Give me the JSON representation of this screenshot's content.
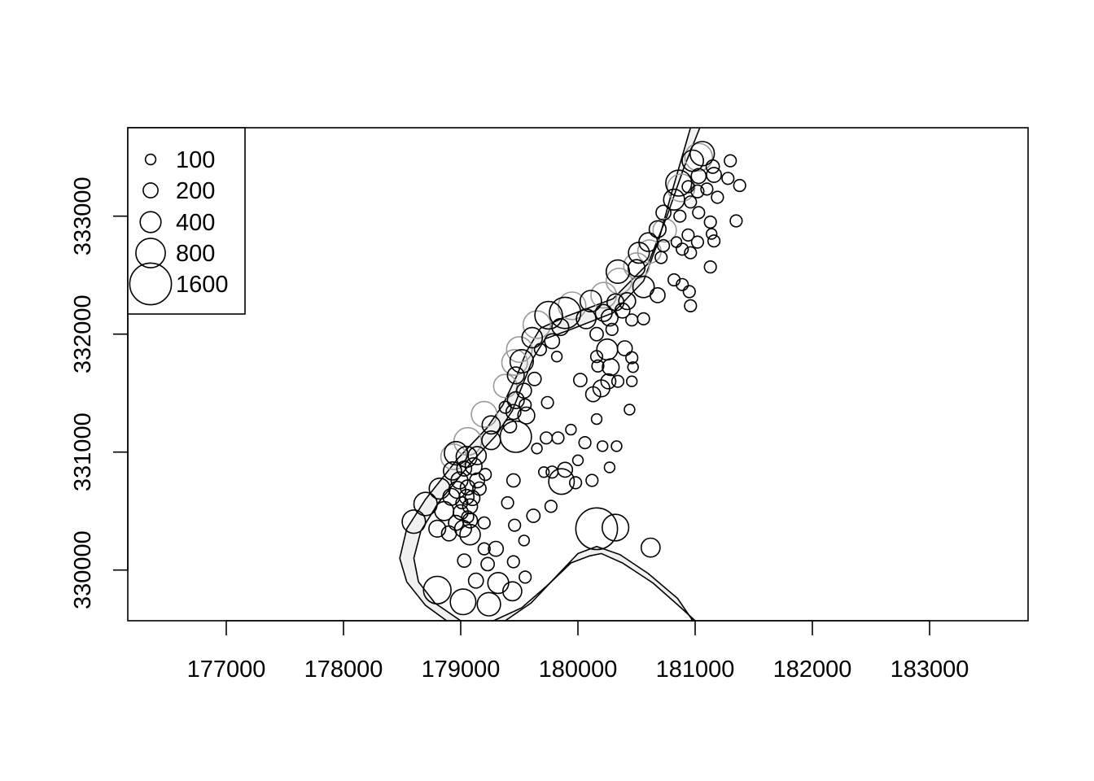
{
  "chart_data": {
    "type": "scatter",
    "title": "",
    "xlabel": "",
    "ylabel": "",
    "xlim": [
      176160,
      183840
    ],
    "ylim": [
      329570,
      333750
    ],
    "x_ticks": [
      177000,
      178000,
      179000,
      180000,
      181000,
      182000,
      183000
    ],
    "y_ticks": [
      330000,
      331000,
      332000,
      333000
    ],
    "x_tick_labels": [
      "177000",
      "178000",
      "179000",
      "180000",
      "181000",
      "182000",
      "183000"
    ],
    "y_tick_labels": [
      "330000",
      "331000",
      "332000",
      "333000"
    ],
    "grid": false,
    "legend": {
      "placement": "top-left",
      "entries": [
        {
          "label": "100",
          "value": 100
        },
        {
          "label": "200",
          "value": 200
        },
        {
          "label": "400",
          "value": 400
        },
        {
          "label": "800",
          "value": 800
        },
        {
          "label": "1600",
          "value": 1600
        }
      ]
    },
    "colors": {
      "river_fill": "#f0f0f0",
      "river_edge": "#000000",
      "point_edge": "#000000",
      "upper_bank_points": "#9a9a9a"
    },
    "river_edges": {
      "outer": [
        [
          178880,
          329570
        ],
        [
          178700,
          329700
        ],
        [
          178540,
          329900
        ],
        [
          178480,
          330100
        ],
        [
          178540,
          330350
        ],
        [
          178700,
          330600
        ],
        [
          178980,
          330950
        ],
        [
          179220,
          331200
        ],
        [
          179360,
          331400
        ],
        [
          179480,
          331650
        ],
        [
          179560,
          331850
        ],
        [
          179680,
          332050
        ],
        [
          179900,
          332150
        ],
        [
          180300,
          332300
        ],
        [
          180600,
          332600
        ],
        [
          180760,
          333000
        ],
        [
          180900,
          333400
        ],
        [
          181040,
          333750
        ]
      ],
      "inner": [
        [
          179380,
          329570
        ],
        [
          179600,
          329720
        ],
        [
          179800,
          329930
        ],
        [
          180000,
          330140
        ],
        [
          180160,
          330200
        ],
        [
          180360,
          330130
        ],
        [
          180600,
          329970
        ],
        [
          180850,
          329760
        ],
        [
          180980,
          329570
        ]
      ],
      "outer_river_left": [
        [
          179000,
          329570
        ],
        [
          178780,
          329720
        ],
        [
          178640,
          329900
        ],
        [
          178600,
          330100
        ],
        [
          178660,
          330330
        ],
        [
          178810,
          330570
        ],
        [
          179080,
          330900
        ],
        [
          179300,
          331140
        ],
        [
          179440,
          331350
        ],
        [
          179540,
          331600
        ],
        [
          179620,
          331800
        ],
        [
          179720,
          331960
        ],
        [
          179940,
          332040
        ],
        [
          180300,
          332180
        ],
        [
          180560,
          332450
        ],
        [
          180690,
          332800
        ],
        [
          180800,
          333200
        ],
        [
          180960,
          333750
        ]
      ],
      "inner_river_right": [
        [
          179280,
          329570
        ],
        [
          179520,
          329680
        ],
        [
          179740,
          329870
        ],
        [
          179940,
          330060
        ],
        [
          180100,
          330120
        ],
        [
          180200,
          330140
        ],
        [
          180380,
          330060
        ],
        [
          180640,
          329890
        ],
        [
          180880,
          329680
        ],
        [
          181000,
          329570
        ]
      ]
    },
    "points": [
      {
        "x": 181060,
        "y": 333530,
        "v": 540
      },
      {
        "x": 180980,
        "y": 333470,
        "v": 420
      },
      {
        "x": 181150,
        "y": 333420,
        "v": 160
      },
      {
        "x": 181300,
        "y": 333470,
        "v": 130
      },
      {
        "x": 181030,
        "y": 333340,
        "v": 200
      },
      {
        "x": 181160,
        "y": 333350,
        "v": 200
      },
      {
        "x": 181280,
        "y": 333320,
        "v": 130
      },
      {
        "x": 181380,
        "y": 333260,
        "v": 130
      },
      {
        "x": 180860,
        "y": 333280,
        "v": 620
      },
      {
        "x": 180940,
        "y": 333250,
        "v": 130
      },
      {
        "x": 181020,
        "y": 333210,
        "v": 150
      },
      {
        "x": 181100,
        "y": 333230,
        "v": 130
      },
      {
        "x": 181190,
        "y": 333160,
        "v": 130
      },
      {
        "x": 180820,
        "y": 333140,
        "v": 400
      },
      {
        "x": 180960,
        "y": 333120,
        "v": 130
      },
      {
        "x": 181030,
        "y": 333030,
        "v": 130
      },
      {
        "x": 180730,
        "y": 333030,
        "v": 200
      },
      {
        "x": 180870,
        "y": 333000,
        "v": 130
      },
      {
        "x": 181130,
        "y": 332950,
        "v": 130
      },
      {
        "x": 181350,
        "y": 332960,
        "v": 130
      },
      {
        "x": 180680,
        "y": 332890,
        "v": 260
      },
      {
        "x": 180940,
        "y": 332840,
        "v": 130
      },
      {
        "x": 181140,
        "y": 332850,
        "v": 100
      },
      {
        "x": 180600,
        "y": 332780,
        "v": 320
      },
      {
        "x": 180730,
        "y": 332750,
        "v": 130
      },
      {
        "x": 180840,
        "y": 332780,
        "v": 100
      },
      {
        "x": 180890,
        "y": 332720,
        "v": 130
      },
      {
        "x": 181020,
        "y": 332780,
        "v": 130
      },
      {
        "x": 181160,
        "y": 332790,
        "v": 130
      },
      {
        "x": 180520,
        "y": 332690,
        "v": 400
      },
      {
        "x": 180710,
        "y": 332650,
        "v": 130
      },
      {
        "x": 180960,
        "y": 332690,
        "v": 130
      },
      {
        "x": 180340,
        "y": 332530,
        "v": 500
      },
      {
        "x": 180500,
        "y": 332560,
        "v": 260
      },
      {
        "x": 181130,
        "y": 332570,
        "v": 130
      },
      {
        "x": 180560,
        "y": 332400,
        "v": 420
      },
      {
        "x": 180820,
        "y": 332460,
        "v": 130
      },
      {
        "x": 180890,
        "y": 332420,
        "v": 130
      },
      {
        "x": 180950,
        "y": 332360,
        "v": 130
      },
      {
        "x": 180680,
        "y": 332330,
        "v": 200
      },
      {
        "x": 180960,
        "y": 332240,
        "v": 130
      },
      {
        "x": 180110,
        "y": 332280,
        "v": 420
      },
      {
        "x": 180320,
        "y": 332270,
        "v": 260
      },
      {
        "x": 180420,
        "y": 332280,
        "v": 260
      },
      {
        "x": 180220,
        "y": 332180,
        "v": 260
      },
      {
        "x": 180380,
        "y": 332200,
        "v": 200
      },
      {
        "x": 180070,
        "y": 332130,
        "v": 350
      },
      {
        "x": 180270,
        "y": 332140,
        "v": 260
      },
      {
        "x": 180460,
        "y": 332120,
        "v": 130
      },
      {
        "x": 180560,
        "y": 332130,
        "v": 130
      },
      {
        "x": 179890,
        "y": 332180,
        "v": 900
      },
      {
        "x": 179750,
        "y": 332160,
        "v": 700
      },
      {
        "x": 179850,
        "y": 332060,
        "v": 260
      },
      {
        "x": 180160,
        "y": 332000,
        "v": 160
      },
      {
        "x": 180290,
        "y": 332040,
        "v": 130
      },
      {
        "x": 179610,
        "y": 331970,
        "v": 380
      },
      {
        "x": 179780,
        "y": 331940,
        "v": 200
      },
      {
        "x": 180250,
        "y": 331870,
        "v": 400
      },
      {
        "x": 180400,
        "y": 331880,
        "v": 200
      },
      {
        "x": 180460,
        "y": 331800,
        "v": 130
      },
      {
        "x": 179680,
        "y": 331870,
        "v": 130
      },
      {
        "x": 179820,
        "y": 331810,
        "v": 100
      },
      {
        "x": 180160,
        "y": 331810,
        "v": 130
      },
      {
        "x": 180170,
        "y": 331730,
        "v": 130
      },
      {
        "x": 180280,
        "y": 331720,
        "v": 260
      },
      {
        "x": 180470,
        "y": 331720,
        "v": 100
      },
      {
        "x": 179520,
        "y": 331770,
        "v": 500
      },
      {
        "x": 179470,
        "y": 331650,
        "v": 260
      },
      {
        "x": 179630,
        "y": 331620,
        "v": 160
      },
      {
        "x": 180020,
        "y": 331610,
        "v": 160
      },
      {
        "x": 180260,
        "y": 331600,
        "v": 200
      },
      {
        "x": 180340,
        "y": 331600,
        "v": 130
      },
      {
        "x": 180460,
        "y": 331600,
        "v": 100
      },
      {
        "x": 179540,
        "y": 331520,
        "v": 200
      },
      {
        "x": 180200,
        "y": 331540,
        "v": 260
      },
      {
        "x": 180130,
        "y": 331490,
        "v": 200
      },
      {
        "x": 179470,
        "y": 331440,
        "v": 260
      },
      {
        "x": 179380,
        "y": 331380,
        "v": 130
      },
      {
        "x": 179550,
        "y": 331400,
        "v": 130
      },
      {
        "x": 179740,
        "y": 331420,
        "v": 130
      },
      {
        "x": 180440,
        "y": 331360,
        "v": 100
      },
      {
        "x": 179450,
        "y": 331340,
        "v": 200
      },
      {
        "x": 179560,
        "y": 331310,
        "v": 260
      },
      {
        "x": 180160,
        "y": 331280,
        "v": 100
      },
      {
        "x": 179260,
        "y": 331230,
        "v": 300
      },
      {
        "x": 179420,
        "y": 331220,
        "v": 160
      },
      {
        "x": 179940,
        "y": 331190,
        "v": 100
      },
      {
        "x": 179260,
        "y": 331100,
        "v": 320
      },
      {
        "x": 179470,
        "y": 331130,
        "v": 900
      },
      {
        "x": 179730,
        "y": 331120,
        "v": 130
      },
      {
        "x": 179830,
        "y": 331120,
        "v": 130
      },
      {
        "x": 180060,
        "y": 331080,
        "v": 130
      },
      {
        "x": 179650,
        "y": 331030,
        "v": 100
      },
      {
        "x": 180210,
        "y": 331050,
        "v": 100
      },
      {
        "x": 180330,
        "y": 331050,
        "v": 100
      },
      {
        "x": 180000,
        "y": 330930,
        "v": 100
      },
      {
        "x": 178960,
        "y": 330990,
        "v": 500
      },
      {
        "x": 179050,
        "y": 330960,
        "v": 400
      },
      {
        "x": 179140,
        "y": 330970,
        "v": 300
      },
      {
        "x": 179110,
        "y": 330880,
        "v": 260
      },
      {
        "x": 179030,
        "y": 330860,
        "v": 200
      },
      {
        "x": 180270,
        "y": 330870,
        "v": 100
      },
      {
        "x": 179710,
        "y": 330830,
        "v": 100
      },
      {
        "x": 179780,
        "y": 330830,
        "v": 130
      },
      {
        "x": 179890,
        "y": 330850,
        "v": 200
      },
      {
        "x": 178930,
        "y": 330840,
        "v": 300
      },
      {
        "x": 179210,
        "y": 330810,
        "v": 130
      },
      {
        "x": 179860,
        "y": 330750,
        "v": 600
      },
      {
        "x": 180120,
        "y": 330760,
        "v": 130
      },
      {
        "x": 179980,
        "y": 330740,
        "v": 130
      },
      {
        "x": 178990,
        "y": 330760,
        "v": 260
      },
      {
        "x": 179140,
        "y": 330760,
        "v": 200
      },
      {
        "x": 179450,
        "y": 330760,
        "v": 160
      },
      {
        "x": 178820,
        "y": 330690,
        "v": 400
      },
      {
        "x": 178970,
        "y": 330680,
        "v": 260
      },
      {
        "x": 179060,
        "y": 330700,
        "v": 200
      },
      {
        "x": 179160,
        "y": 330690,
        "v": 160
      },
      {
        "x": 178920,
        "y": 330620,
        "v": 260
      },
      {
        "x": 179050,
        "y": 330620,
        "v": 200
      },
      {
        "x": 179100,
        "y": 330610,
        "v": 200
      },
      {
        "x": 179010,
        "y": 330570,
        "v": 130
      },
      {
        "x": 178700,
        "y": 330560,
        "v": 500
      },
      {
        "x": 179080,
        "y": 330540,
        "v": 200
      },
      {
        "x": 179400,
        "y": 330570,
        "v": 130
      },
      {
        "x": 179770,
        "y": 330540,
        "v": 130
      },
      {
        "x": 178860,
        "y": 330500,
        "v": 330
      },
      {
        "x": 179000,
        "y": 330490,
        "v": 200
      },
      {
        "x": 179060,
        "y": 330450,
        "v": 130
      },
      {
        "x": 179620,
        "y": 330460,
        "v": 160
      },
      {
        "x": 178600,
        "y": 330410,
        "v": 500
      },
      {
        "x": 178960,
        "y": 330400,
        "v": 200
      },
      {
        "x": 179080,
        "y": 330420,
        "v": 200
      },
      {
        "x": 179200,
        "y": 330400,
        "v": 130
      },
      {
        "x": 179460,
        "y": 330380,
        "v": 130
      },
      {
        "x": 178800,
        "y": 330350,
        "v": 260
      },
      {
        "x": 179020,
        "y": 330350,
        "v": 260
      },
      {
        "x": 178900,
        "y": 330310,
        "v": 200
      },
      {
        "x": 179080,
        "y": 330300,
        "v": 380
      },
      {
        "x": 179540,
        "y": 330250,
        "v": 100
      },
      {
        "x": 180160,
        "y": 330350,
        "v": 1600
      },
      {
        "x": 180320,
        "y": 330360,
        "v": 650
      },
      {
        "x": 180620,
        "y": 330190,
        "v": 330
      },
      {
        "x": 179200,
        "y": 330180,
        "v": 130
      },
      {
        "x": 179300,
        "y": 330180,
        "v": 200
      },
      {
        "x": 179030,
        "y": 330080,
        "v": 160
      },
      {
        "x": 179230,
        "y": 330050,
        "v": 160
      },
      {
        "x": 179450,
        "y": 330070,
        "v": 130
      },
      {
        "x": 179550,
        "y": 329940,
        "v": 130
      },
      {
        "x": 179130,
        "y": 329910,
        "v": 200
      },
      {
        "x": 179320,
        "y": 329890,
        "v": 400
      },
      {
        "x": 178800,
        "y": 329830,
        "v": 700
      },
      {
        "x": 179440,
        "y": 329820,
        "v": 330
      },
      {
        "x": 179020,
        "y": 329730,
        "v": 600
      },
      {
        "x": 179240,
        "y": 329710,
        "v": 500
      }
    ],
    "upper_bank_points": [
      {
        "x": 181030,
        "y": 333500,
        "v": 700
      },
      {
        "x": 180880,
        "y": 333240,
        "v": 700
      },
      {
        "x": 180740,
        "y": 332880,
        "v": 500
      },
      {
        "x": 180610,
        "y": 332700,
        "v": 500
      },
      {
        "x": 180500,
        "y": 332580,
        "v": 600
      },
      {
        "x": 180350,
        "y": 332450,
        "v": 600
      },
      {
        "x": 180220,
        "y": 332330,
        "v": 600
      },
      {
        "x": 179950,
        "y": 332240,
        "v": 700
      },
      {
        "x": 179650,
        "y": 332080,
        "v": 700
      },
      {
        "x": 179500,
        "y": 331870,
        "v": 600
      },
      {
        "x": 179460,
        "y": 331760,
        "v": 600
      },
      {
        "x": 179380,
        "y": 331560,
        "v": 500
      },
      {
        "x": 179200,
        "y": 331320,
        "v": 600
      },
      {
        "x": 179060,
        "y": 331090,
        "v": 700
      },
      {
        "x": 178940,
        "y": 330960,
        "v": 600
      }
    ]
  }
}
